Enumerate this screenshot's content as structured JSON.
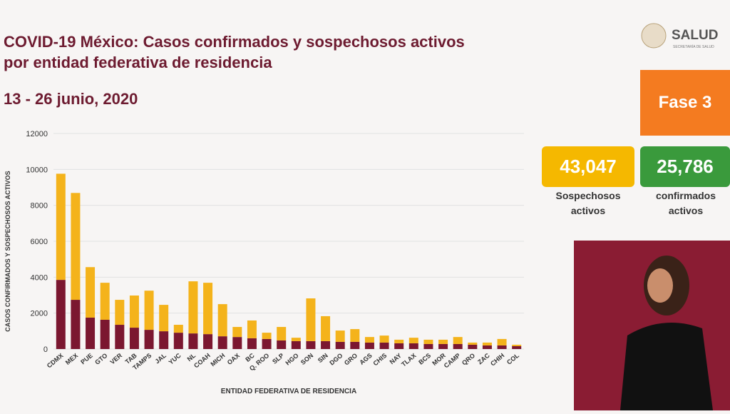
{
  "header": {
    "title_line1": "COVID-19 México: Casos confirmados y sospechosos activos",
    "title_line2": "por entidad federativa de residencia",
    "date": "13 - 26 junio, 2020",
    "logo": "SALUD",
    "logo_sub": "SECRETARÍA DE SALUD"
  },
  "panel": {
    "phase": "Fase 3",
    "suspected": {
      "number": "43,047",
      "label": "Sospechosos activos"
    },
    "confirmed": {
      "number": "25,786",
      "label": "confirmados activos"
    }
  },
  "chart_data": {
    "type": "stacked-bar",
    "x_label": "ENTIDAD FEDERATIVA DE RESIDENCIA",
    "y_label": "CASOS CONFIRMADOS Y SOSPECHOSOS ACTIVOS",
    "categories": [
      "CDMX",
      "MEX",
      "PUE",
      "GTO",
      "VER",
      "TAB",
      "TAMPS",
      "JAL",
      "YUC",
      "NL",
      "COAH",
      "MICH",
      "OAX",
      "BC",
      "Q. ROO",
      "SLP",
      "HGO",
      "SON",
      "SIN",
      "DGO",
      "GRO",
      "AGS",
      "CHIS",
      "NAY",
      "TLAX",
      "BCS",
      "MOR",
      "CAMP",
      "QRO",
      "ZAC",
      "CHIH",
      "COL"
    ],
    "series": [
      {
        "color": "#7b1730",
        "values": [
          3850,
          2740,
          1750,
          1630,
          1350,
          1190,
          1070,
          990,
          910,
          870,
          830,
          710,
          670,
          600,
          560,
          480,
          440,
          440,
          440,
          400,
          400,
          360,
          360,
          320,
          320,
          280,
          280,
          280,
          240,
          200,
          200,
          160
        ]
      },
      {
        "color": "#f4b31b",
        "values": [
          5910,
          5950,
          2810,
          2060,
          1390,
          1790,
          2180,
          1470,
          440,
          2900,
          2860,
          1790,
          560,
          990,
          350,
          750,
          190,
          2380,
          1390,
          630,
          710,
          310,
          390,
          200,
          310,
          240,
          240,
          390,
          120,
          160,
          360,
          80
        ]
      }
    ],
    "ylim": [
      0,
      12000
    ],
    "yticks": [
      0,
      2000,
      4000,
      6000,
      8000,
      10000,
      12000
    ],
    "grid": true
  }
}
